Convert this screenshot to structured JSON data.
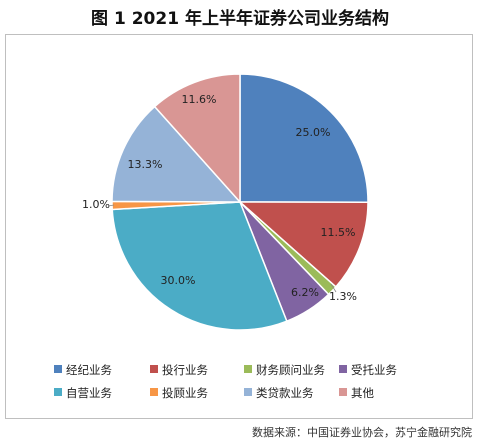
{
  "title": "图 1  2021 年上半年证券公司业务结构",
  "source": "数据来源：中国证券业协会，苏宁金融研究院",
  "chart_data": {
    "type": "pie",
    "slices": [
      {
        "label": "经纪业务",
        "value": 25.0,
        "value_label": "25.0%",
        "color": "#4f81bd"
      },
      {
        "label": "投行业务",
        "value": 11.5,
        "value_label": "11.5%",
        "color": "#c0504d"
      },
      {
        "label": "财务顾问业务",
        "value": 1.3,
        "value_label": "1.3%",
        "color": "#9bbb59"
      },
      {
        "label": "受托业务",
        "value": 6.2,
        "value_label": "6.2%",
        "color": "#8064a2"
      },
      {
        "label": "自营业务",
        "value": 30.0,
        "value_label": "30.0%",
        "color": "#4bacc6"
      },
      {
        "label": "投顾业务",
        "value": 1.0,
        "value_label": "1.0%",
        "color": "#f79646"
      },
      {
        "label": "类贷款业务",
        "value": 13.3,
        "value_label": "13.3%",
        "color": "#95b3d7"
      },
      {
        "label": "其他",
        "value": 11.6,
        "value_label": "11.6%",
        "color": "#d99694"
      }
    ],
    "legend_position": "bottom"
  }
}
